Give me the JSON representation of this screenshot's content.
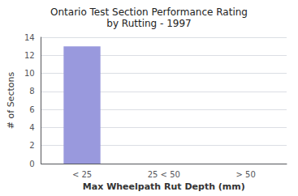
{
  "chart_data": {
    "type": "bar",
    "title": "Ontario Test Section Performance Rating",
    "subtitle": "by Rutting - 1997",
    "categories": [
      "< 25",
      "25 < 50",
      "> 50"
    ],
    "values": [
      13,
      0,
      0
    ],
    "color": "#9999dd",
    "xlabel": "Max Wheelpath Rut Depth (mm)",
    "ylabel": "# of Sectons",
    "ylim": [
      0,
      14
    ],
    "yticks": [
      0,
      2,
      4,
      6,
      8,
      10,
      12,
      14
    ],
    "grid": true
  }
}
